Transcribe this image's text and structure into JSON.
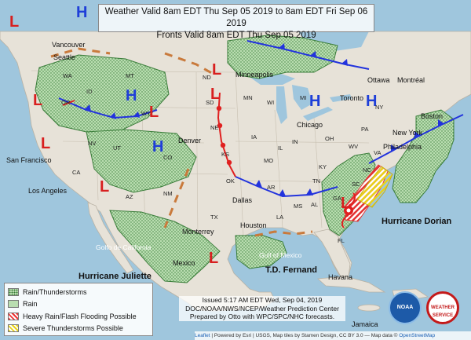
{
  "title": {
    "line1": "Weather Valid 8am EDT Thu Sep 05 2019 to 8am EDT Fri Sep 06 2019",
    "line2": "Fronts Valid 8am EDT Thu Sep 05 2019"
  },
  "legend": {
    "items": [
      {
        "label": "Rain/Thunderstorms"
      },
      {
        "label": "Rain"
      },
      {
        "label": "Heavy Rain/Flash Flooding Possible"
      },
      {
        "label": "Severe Thunderstorms Possible"
      }
    ]
  },
  "issued": {
    "line1": "Issued 5:17 AM EDT Wed, Sep 04, 2019",
    "line2": "DOC/NOAA/NWS/NCEP/Weather Prediction Center",
    "line3": "Prepared by Otto with WPC/SPC/NHC forecasts."
  },
  "credits": {
    "leaflet": "Leaflet",
    "text": " | Powered by Esri | USGS, Map tiles by Stamen Design, CC BY 3.0 — Map data © ",
    "osm": "OpenStreetMap"
  },
  "logos": {
    "noaa": "NOAA",
    "nws": "WEATHER SERVICE"
  },
  "cities": {
    "vancouver": "Vancouver",
    "seattle": "Seattle",
    "san_francisco": "San Francisco",
    "los_angeles": "Los Angeles",
    "denver": "Denver",
    "minneapolis": "Minneapolis",
    "chicago": "Chicago",
    "toronto": "Toronto",
    "montreal": "Montréal",
    "boston": "Boston",
    "new_york": "New York",
    "philadelphia": "Philadelphia",
    "dallas": "Dallas",
    "houston": "Houston",
    "havana": "Havana",
    "jamaica": "Jamaica",
    "mexico": "Mexico",
    "monterrey": "Monterrey",
    "ottawa": "Ottawa"
  },
  "states": [
    "WA",
    "OR",
    "ID",
    "MT",
    "ND",
    "SD",
    "NE",
    "KS",
    "OK",
    "TX",
    "NM",
    "AZ",
    "UT",
    "NV",
    "CA",
    "CO",
    "WY",
    "MN",
    "WI",
    "MI",
    "IA",
    "MO",
    "AR",
    "LA",
    "MS",
    "AL",
    "GA",
    "FL",
    "SC",
    "NC",
    "VA",
    "KY",
    "TN",
    "IN",
    "IL",
    "OH",
    "PA",
    "NY",
    "WV"
  ],
  "water": {
    "gulf": "Gulf of Mexico",
    "california_gulf": "Golfo de California"
  },
  "hurricanes": {
    "dorian": "Hurricane Dorian",
    "juliette": "Hurricane Juliette",
    "fernand": "T.D. Fernand"
  },
  "pressure": {
    "high": "H",
    "low": "L"
  },
  "colors": {
    "ocean": "#9fc6dd",
    "land": "#e7e2d8",
    "rain": "#b9ddb0",
    "storm_dot": "#3a7d3a",
    "cold_front": "#2233dd",
    "warm_front": "#e02020",
    "trough": "#c97a3c",
    "flood": "#e33333",
    "severe": "#e8d21b",
    "high": "#1f3fd8",
    "low": "#d81f1f"
  }
}
